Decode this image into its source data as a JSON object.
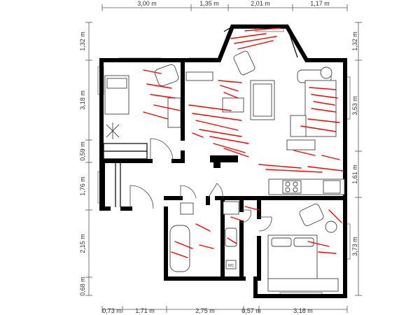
{
  "dimensions": {
    "top": [
      "3,00 m",
      "1,35 m",
      "2,01 m",
      "1,17 m"
    ],
    "bottom": [
      "0,73 m",
      "1,71 m",
      "2,75 m",
      "0,57 m",
      "3,18 m"
    ],
    "left": [
      "1,32 m",
      "3,18 m",
      "0,59 m",
      "1,76 m",
      "2,15 m",
      "0,68 m"
    ],
    "right": [
      "1,32 m",
      "3,53 m",
      "1,61 m",
      "3,73 m"
    ]
  },
  "labels": {
    "wc": "WC"
  },
  "colors": {
    "walls": "#000000",
    "markings": "#ff0000",
    "dimension_lines": "#555555"
  }
}
